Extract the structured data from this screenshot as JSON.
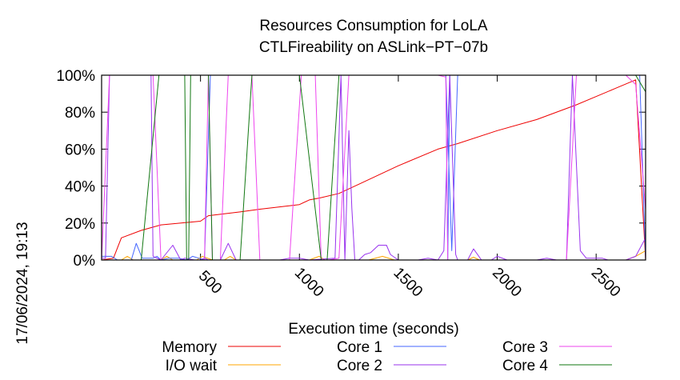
{
  "chart_data": {
    "type": "line",
    "title": [
      "Resources Consumption for LoLA",
      "CTLFireability on ASLink−PT−07b"
    ],
    "xlabel": "Execution time (seconds)",
    "ylabel": "",
    "side_label": "17/06/2024, 19:13",
    "xlim": [
      0,
      2750
    ],
    "ylim": [
      0,
      100
    ],
    "x_ticks": [
      {
        "value": 500,
        "label": "500"
      },
      {
        "value": 1000,
        "label": "1000"
      },
      {
        "value": 1500,
        "label": "1500"
      },
      {
        "value": 2000,
        "label": "2000"
      },
      {
        "value": 2500,
        "label": "2500"
      }
    ],
    "y_ticks": [
      {
        "value": 0,
        "label": "0%"
      },
      {
        "value": 20,
        "label": "20%"
      },
      {
        "value": 40,
        "label": "40%"
      },
      {
        "value": 60,
        "label": "60%"
      },
      {
        "value": 80,
        "label": "80%"
      },
      {
        "value": 100,
        "label": "100%"
      }
    ],
    "series": [
      {
        "name": "Memory",
        "color": "#ee0000",
        "points": [
          [
            0,
            0
          ],
          [
            60,
            1
          ],
          [
            100,
            12
          ],
          [
            200,
            16
          ],
          [
            300,
            19
          ],
          [
            500,
            21
          ],
          [
            540,
            24
          ],
          [
            700,
            26
          ],
          [
            800,
            27.5
          ],
          [
            1000,
            30
          ],
          [
            1050,
            32.5
          ],
          [
            1100,
            33.5
          ],
          [
            1200,
            36
          ],
          [
            1300,
            41
          ],
          [
            1500,
            51
          ],
          [
            1700,
            60
          ],
          [
            1800,
            63
          ],
          [
            2000,
            70
          ],
          [
            2200,
            76
          ],
          [
            2400,
            84
          ],
          [
            2600,
            93
          ],
          [
            2700,
            97.5
          ],
          [
            2750,
            0
          ]
        ]
      },
      {
        "name": "I/O wait",
        "color": "#ffa500",
        "points": [
          [
            0,
            0
          ],
          [
            100,
            0
          ],
          [
            130,
            2
          ],
          [
            160,
            0
          ],
          [
            300,
            0
          ],
          [
            330,
            2
          ],
          [
            360,
            0
          ],
          [
            480,
            0
          ],
          [
            510,
            2
          ],
          [
            560,
            0
          ],
          [
            620,
            0
          ],
          [
            650,
            2
          ],
          [
            680,
            0
          ],
          [
            1050,
            0
          ],
          [
            1100,
            2
          ],
          [
            1130,
            0
          ],
          [
            1350,
            0
          ],
          [
            1420,
            2
          ],
          [
            1480,
            0
          ],
          [
            1850,
            0
          ],
          [
            1880,
            1.5
          ],
          [
            1910,
            0
          ],
          [
            2650,
            0
          ],
          [
            2700,
            2
          ],
          [
            2750,
            5
          ]
        ]
      },
      {
        "name": "Core 1",
        "color": "#4466ff",
        "points": [
          [
            0,
            2
          ],
          [
            50,
            2
          ],
          [
            80,
            0
          ],
          [
            150,
            0
          ],
          [
            175,
            9
          ],
          [
            205,
            1
          ],
          [
            260,
            1
          ],
          [
            280,
            2
          ],
          [
            300,
            0
          ],
          [
            340,
            1
          ],
          [
            390,
            1
          ],
          [
            430,
            0
          ],
          [
            460,
            2
          ],
          [
            490,
            1
          ],
          [
            520,
            0
          ],
          [
            550,
            100
          ],
          [
            1800,
            100
          ],
          [
            1770,
            5
          ],
          [
            1740,
            100
          ],
          [
            1750,
            0
          ],
          [
            1760,
            100
          ],
          [
            2720,
            100
          ],
          [
            2750,
            0
          ]
        ]
      },
      {
        "name": "Core 2",
        "color": "#9933ee",
        "points": [
          [
            0,
            1
          ],
          [
            20,
            1
          ],
          [
            40,
            100
          ],
          [
            250,
            100
          ],
          [
            260,
            2
          ],
          [
            300,
            0
          ],
          [
            360,
            8
          ],
          [
            400,
            0
          ],
          [
            420,
            1
          ],
          [
            470,
            0
          ],
          [
            500,
            0
          ],
          [
            520,
            1
          ],
          [
            540,
            0
          ],
          [
            600,
            0
          ],
          [
            640,
            9
          ],
          [
            680,
            0
          ],
          [
            900,
            0
          ],
          [
            950,
            1
          ],
          [
            1000,
            1
          ],
          [
            1050,
            0
          ],
          [
            1180,
            1
          ],
          [
            1210,
            100
          ],
          [
            1230,
            0
          ],
          [
            1250,
            70
          ],
          [
            1265,
            28
          ],
          [
            1280,
            0
          ],
          [
            1300,
            0
          ],
          [
            1330,
            3
          ],
          [
            1360,
            4
          ],
          [
            1400,
            8
          ],
          [
            1440,
            8
          ],
          [
            1460,
            3
          ],
          [
            1500,
            0
          ],
          [
            1600,
            0
          ],
          [
            1650,
            1
          ],
          [
            1700,
            0
          ],
          [
            1730,
            5
          ],
          [
            1760,
            100
          ],
          [
            1790,
            3
          ],
          [
            1800,
            0
          ],
          [
            1850,
            0
          ],
          [
            1880,
            6
          ],
          [
            1920,
            0
          ],
          [
            1970,
            0
          ],
          [
            2000,
            2
          ],
          [
            2050,
            0
          ],
          [
            2200,
            0
          ],
          [
            2250,
            1
          ],
          [
            2300,
            0
          ],
          [
            2350,
            0
          ],
          [
            2380,
            100
          ],
          [
            2420,
            5
          ],
          [
            2450,
            1
          ],
          [
            2530,
            1
          ],
          [
            2560,
            0
          ],
          [
            2650,
            0
          ],
          [
            2700,
            2
          ],
          [
            2750,
            12
          ]
        ]
      },
      {
        "name": "Core 3",
        "color": "#ee44ee",
        "points": [
          [
            0,
            0
          ],
          [
            40,
            100
          ],
          [
            80,
            100
          ],
          [
            120,
            100
          ],
          [
            160,
            100
          ],
          [
            190,
            100
          ],
          [
            260,
            100
          ],
          [
            300,
            0
          ],
          [
            320,
            0
          ],
          [
            380,
            0
          ],
          [
            500,
            0
          ],
          [
            520,
            0
          ],
          [
            540,
            100
          ],
          [
            560,
            0
          ],
          [
            600,
            0
          ],
          [
            640,
            100
          ],
          [
            700,
            100
          ],
          [
            760,
            100
          ],
          [
            800,
            0
          ],
          [
            950,
            0
          ],
          [
            1010,
            100
          ],
          [
            1050,
            100
          ],
          [
            1080,
            100
          ],
          [
            1110,
            0
          ],
          [
            1150,
            0
          ],
          [
            1200,
            1
          ],
          [
            1250,
            100
          ],
          [
            1300,
            100
          ],
          [
            1500,
            100
          ],
          [
            1700,
            100
          ],
          [
            1740,
            99
          ],
          [
            1750,
            0
          ],
          [
            2000,
            0
          ],
          [
            2350,
            0
          ],
          [
            2400,
            100
          ],
          [
            2650,
            100
          ],
          [
            2700,
            95
          ],
          [
            2750,
            27
          ]
        ]
      },
      {
        "name": "Core 4",
        "color": "#117711",
        "points": [
          [
            0,
            0
          ],
          [
            100,
            0
          ],
          [
            200,
            0
          ],
          [
            290,
            100
          ],
          [
            420,
            100
          ],
          [
            430,
            0
          ],
          [
            440,
            0
          ],
          [
            450,
            100
          ],
          [
            500,
            100
          ],
          [
            540,
            100
          ],
          [
            560,
            0
          ],
          [
            640,
            0
          ],
          [
            700,
            0
          ],
          [
            760,
            100
          ],
          [
            1000,
            100
          ],
          [
            1110,
            0
          ],
          [
            1140,
            0
          ],
          [
            1200,
            100
          ],
          [
            1300,
            100
          ],
          [
            2700,
            100
          ],
          [
            2750,
            91
          ]
        ]
      }
    ]
  }
}
